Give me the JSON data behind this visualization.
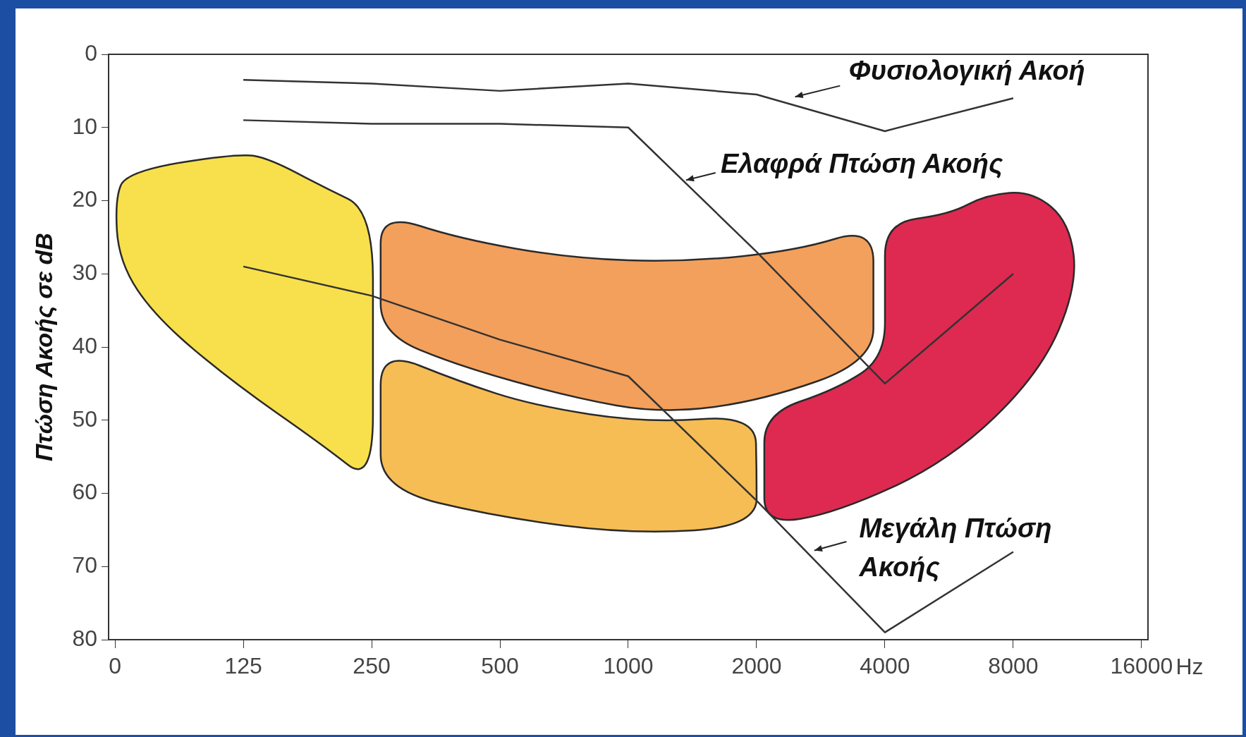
{
  "chart_data": {
    "type": "line",
    "xlabel": "Hz",
    "ylabel": "Πτώση Ακοής σε dB",
    "categories": [
      "0",
      "125",
      "250",
      "500",
      "1000",
      "2000",
      "4000",
      "8000",
      "16000"
    ],
    "ylim": [
      80,
      0
    ],
    "yticks": [
      0,
      10,
      20,
      30,
      40,
      50,
      60,
      70,
      80
    ],
    "grid": false,
    "marker": "none",
    "line_style": "solid",
    "series": [
      {
        "name": "Φυσιολογική Ακοή",
        "color": "#333333",
        "values": [
          null,
          3.5,
          4,
          5,
          4,
          5.5,
          10.5,
          6,
          null
        ]
      },
      {
        "name": "Ελαφρά Πτώση Ακοής",
        "color": "#333333",
        "values": [
          null,
          9,
          9.5,
          9.5,
          10,
          27,
          45,
          30,
          null
        ]
      },
      {
        "name": "Μεγάλη Πτώση Ακοής",
        "color": "#333333",
        "values": [
          null,
          29,
          33,
          39,
          44,
          61,
          79,
          68,
          null
        ]
      }
    ]
  }
}
